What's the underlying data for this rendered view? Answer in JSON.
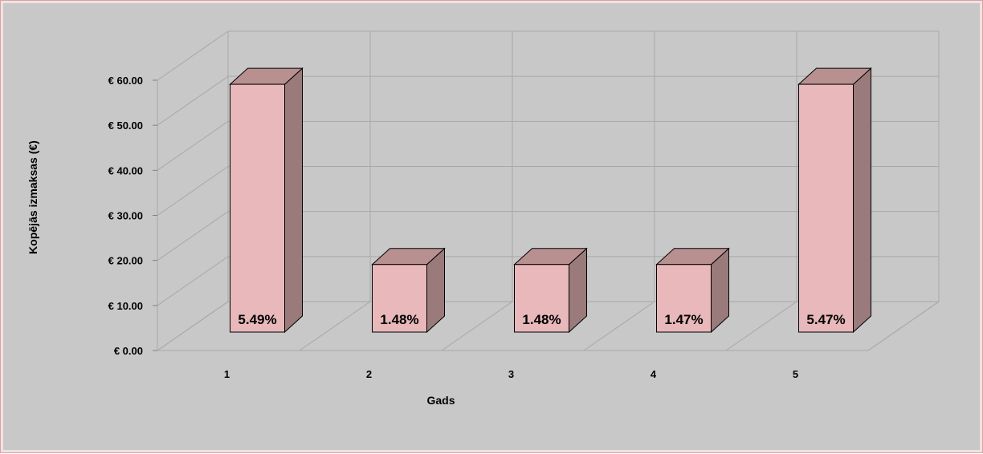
{
  "chart_data": {
    "type": "bar",
    "three_d": true,
    "categories": [
      "1",
      "2",
      "3",
      "4",
      "5"
    ],
    "values": [
      55,
      15,
      15,
      15,
      55
    ],
    "data_labels": [
      "5.49%",
      "1.48%",
      "1.48%",
      "1.47%",
      "5.47%"
    ],
    "xlabel": "Gads",
    "ylabel": "Kopējās izmaksas (€)",
    "ylim": [
      0,
      60
    ],
    "yticks": [
      0,
      10,
      20,
      30,
      40,
      50,
      60
    ],
    "ytick_labels": [
      "€ 0.00",
      "€ 10.00",
      "€ 20.00",
      "€ 30.00",
      "€ 40.00",
      "€ 50.00",
      "€ 60.00"
    ],
    "grid": true,
    "legend": false,
    "colors": {
      "background": "#c8c8c8",
      "bar_front": "#e8b8ba",
      "bar_top": "#b89090",
      "bar_side": "#9a7a7a",
      "gridline": "#a8a8a8"
    }
  }
}
